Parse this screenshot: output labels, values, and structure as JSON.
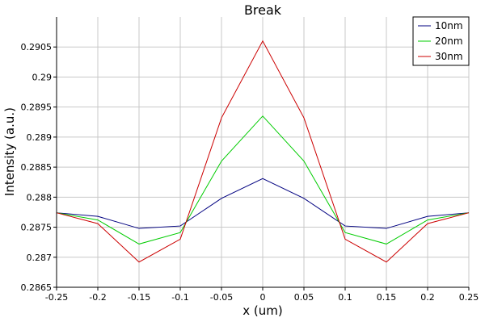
{
  "chart_data": {
    "type": "line",
    "title": "Break",
    "xlabel": "x (um)",
    "ylabel": "Intensity (a.u.)",
    "xlim": [
      -0.25,
      0.25
    ],
    "ylim": [
      0.2865,
      0.291
    ],
    "xticks": [
      -0.25,
      -0.2,
      -0.15,
      -0.1,
      -0.05,
      0,
      0.05,
      0.1,
      0.15,
      0.2,
      0.25
    ],
    "xtick_labels": [
      "-0.25",
      "-0.2",
      "-0.15",
      "-0.1",
      "-0.05",
      "0",
      "0.05",
      "0.1",
      "0.15",
      "0.2",
      "0.25"
    ],
    "yticks": [
      0.2865,
      0.287,
      0.2875,
      0.288,
      0.2885,
      0.289,
      0.2895,
      0.29,
      0.2905
    ],
    "ytick_labels": [
      "0.2865",
      "0.287",
      "0.2875",
      "0.288",
      "0.2885",
      "0.289",
      "0.2895",
      "0.29",
      "0.2905"
    ],
    "grid": true,
    "legend_position": "top-right",
    "x": [
      -0.25,
      -0.2,
      -0.15,
      -0.1,
      -0.05,
      0,
      0.05,
      0.1,
      0.15,
      0.2,
      0.25
    ],
    "series": [
      {
        "name": "10nm",
        "color": "#000080",
        "values": [
          0.28774,
          0.28768,
          0.28748,
          0.28752,
          0.28798,
          0.28831,
          0.28798,
          0.28752,
          0.28748,
          0.28768,
          0.28774
        ]
      },
      {
        "name": "20nm",
        "color": "#00cc00",
        "values": [
          0.28774,
          0.28762,
          0.28722,
          0.28741,
          0.2886,
          0.28935,
          0.2886,
          0.28741,
          0.28722,
          0.28762,
          0.28774
        ]
      },
      {
        "name": "30nm",
        "color": "#cc0000",
        "values": [
          0.28774,
          0.28756,
          0.28692,
          0.2873,
          0.28932,
          0.2906,
          0.28932,
          0.2873,
          0.28692,
          0.28756,
          0.28774
        ]
      }
    ]
  }
}
